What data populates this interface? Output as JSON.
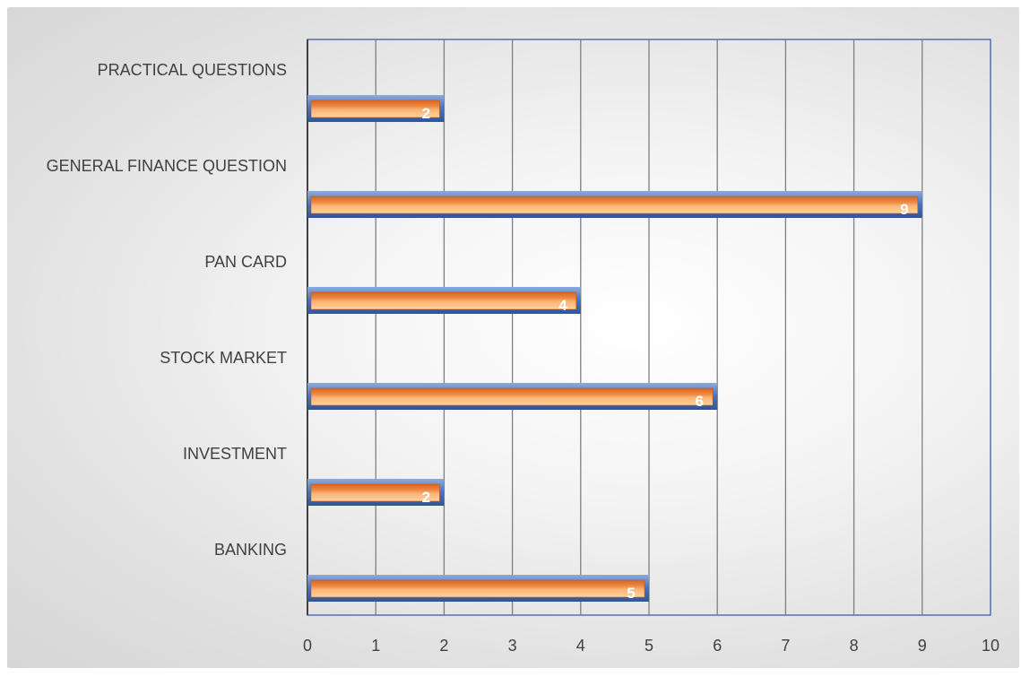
{
  "chart_data": {
    "type": "bar",
    "orientation": "horizontal",
    "categories": [
      "PRACTICAL QUESTIONS",
      "GENERAL FINANCE QUESTION",
      "PAN CARD",
      "STOCK MARKET",
      "INVESTMENT",
      "BANKING"
    ],
    "values": [
      2,
      9,
      4,
      6,
      2,
      5
    ],
    "title": "",
    "xlabel": "",
    "ylabel": "",
    "xlim": [
      0,
      10
    ],
    "x_ticks": [
      "0",
      "1",
      "2",
      "3",
      "4",
      "5",
      "6",
      "7",
      "8",
      "9",
      "10"
    ],
    "grid": true,
    "legend": "none",
    "colors": {
      "bar_fill": "#ed7d31",
      "bar_highlight": "#ffc07a",
      "bar_border": "#4472c4",
      "grid": "#7f7f7f",
      "plot_border": "#2f5597",
      "label_text": "#404040",
      "data_label": "#ffffff"
    }
  }
}
